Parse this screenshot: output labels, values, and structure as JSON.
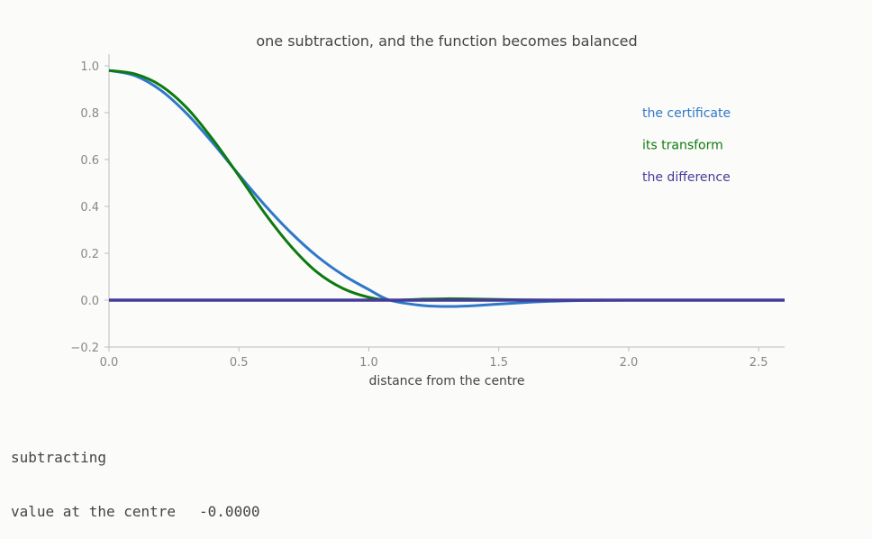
{
  "chart_data": {
    "type": "line",
    "title": "one subtraction, and the function becomes balanced",
    "xlabel": "distance from the centre",
    "ylabel": "",
    "xlim": [
      0,
      2.6
    ],
    "ylim": [
      -0.2,
      1.05
    ],
    "xticks": [
      0.0,
      0.5,
      1.0,
      1.5,
      2.0,
      2.5
    ],
    "xtick_labels": [
      "0.0",
      "0.5",
      "1.0",
      "1.5",
      "2.0",
      "2.5"
    ],
    "yticks": [
      -0.2,
      0.0,
      0.2,
      0.4,
      0.6,
      0.8,
      1.0
    ],
    "ytick_labels": [
      "−0.2",
      "0.0",
      "0.2",
      "0.4",
      "0.6",
      "0.8",
      "1.0"
    ],
    "grid": false,
    "legend_position": "top-right",
    "series": [
      {
        "name": "the certificate",
        "color": "#2f78c8",
        "x": [
          0.0,
          0.1,
          0.2,
          0.3,
          0.4,
          0.5,
          0.6,
          0.7,
          0.8,
          0.9,
          1.0,
          1.08,
          1.2,
          1.3,
          1.4,
          1.5,
          1.6,
          1.7,
          1.8,
          2.0,
          2.6
        ],
        "y": [
          0.98,
          0.958,
          0.895,
          0.795,
          0.67,
          0.535,
          0.405,
          0.288,
          0.188,
          0.108,
          0.045,
          0.0,
          -0.022,
          -0.027,
          -0.024,
          -0.017,
          -0.01,
          -0.005,
          -0.002,
          0.0,
          0.0
        ]
      },
      {
        "name": "its transform",
        "color": "#0e7a0e",
        "x": [
          0.0,
          0.1,
          0.2,
          0.3,
          0.4,
          0.5,
          0.6,
          0.7,
          0.8,
          0.9,
          1.0,
          1.08,
          1.2,
          1.3,
          1.4,
          1.5,
          1.6,
          1.7,
          1.8,
          2.0,
          2.6
        ],
        "y": [
          0.98,
          0.965,
          0.915,
          0.82,
          0.685,
          0.53,
          0.37,
          0.23,
          0.12,
          0.05,
          0.012,
          0.0,
          0.004,
          0.006,
          0.005,
          0.003,
          0.001,
          0.0,
          0.0,
          0.0,
          0.0
        ]
      },
      {
        "name": "the difference",
        "color": "#443c9a",
        "x": [
          0.0,
          2.6
        ],
        "y": [
          0.0,
          0.0
        ]
      }
    ]
  },
  "status": {
    "label": "subtracting",
    "center_label": "value at the centre",
    "center_value": "-0.0000"
  }
}
